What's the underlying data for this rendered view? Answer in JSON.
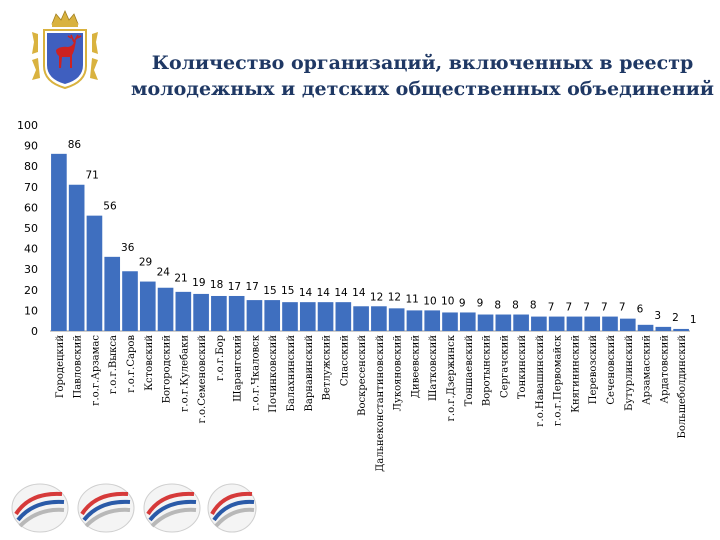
{
  "header": {
    "title_line1": "Количество организаций, включенных в реестр",
    "title_line2": "молодежных и детских общественных объединений"
  },
  "colors": {
    "bar": "#3f6fbf",
    "title": "#1f3864",
    "text": "#000000",
    "coat_field": "#3f5fbf",
    "coat_gold": "#d9b23f",
    "deer": "#cc2222",
    "logo_red": "#d63a3a",
    "logo_blue": "#2a5aa8",
    "logo_grey": "#b8b8b8"
  },
  "icons": {
    "coat_of_arms": "nizhny-novgorod-coat-of-arms-icon",
    "footer_logos": "tricolor-swoosh-logo-icon"
  },
  "chart_data": {
    "type": "bar",
    "title": "Количество организаций, включенных в реестр молодежных и детских общественных объединений",
    "xlabel": "",
    "ylabel": "",
    "ylim": [
      0,
      100
    ],
    "yticks": [
      0,
      10,
      20,
      30,
      40,
      50,
      60,
      70,
      80,
      90,
      100
    ],
    "grid": false,
    "legend": "none",
    "data_labels": true,
    "categories": [
      "Городецкий",
      "Павловский",
      "г.о.г.Арзамас",
      "г.о.г.Выкса",
      "г.о.г.Саров",
      "Кстовский",
      "Богородский",
      "г.о.г.Кулебаки",
      "г.о.Семеновский",
      "г.о.г.Бор",
      "Шарангский",
      "г.о.г.Чкаловск",
      "Починковский",
      "Балахнинский",
      "Варнавинский",
      "Ветлужский",
      "Спасский",
      "Воскресенский",
      "Дальнеконстантиновский",
      "Лукояновский",
      "Дивеевский",
      "Шатковский",
      "г.о.г.Дзержинск",
      "Тоншаевский",
      "Воротынский",
      "Сергачский",
      "Тонкинский",
      "г.о.Навашинский",
      "г.о.г.Первомайск",
      "Княгининский",
      "Перевозский",
      "Сеченовский",
      "Бутурлинский",
      "Арзамасский",
      "Ардатовский",
      "Большеболдинский"
    ],
    "values": [
      86,
      71,
      56,
      36,
      29,
      24,
      21,
      19,
      18,
      17,
      17,
      15,
      15,
      14,
      14,
      14,
      14,
      12,
      12,
      11,
      10,
      10,
      9,
      9,
      8,
      8,
      8,
      7,
      7,
      7,
      7,
      7,
      6,
      3,
      2,
      1
    ]
  }
}
